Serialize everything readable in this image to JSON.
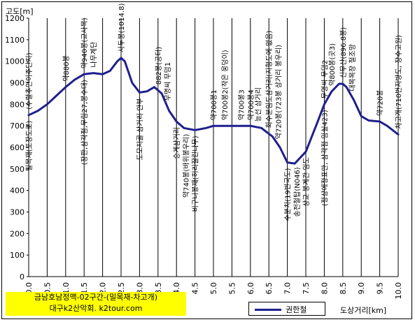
{
  "chart_data": {
    "type": "line",
    "ylabel": "고도[m]",
    "xlabel": "도상거리[km]",
    "ylim": [
      0,
      1200
    ],
    "xlim": [
      0,
      10
    ],
    "y_ticks": [
      "0",
      "100",
      "200",
      "300",
      "400",
      "500",
      "600",
      "700",
      "800",
      "900",
      "1000",
      "1100",
      "1200"
    ],
    "x_ticks": [
      "0.0",
      "0.5",
      "1.0",
      "1.5",
      "2.0",
      "2.5",
      "3.0",
      "3.5",
      "4.0",
      "4.5",
      "5.0",
      "5.5",
      "6.0",
      "6.5",
      "7.0",
      "7.5",
      "8.0",
      "8.5",
      "9.0",
      "9.5",
      "10.0"
    ],
    "grid": "vertical",
    "series": [
      {
        "name": "권한철",
        "color": "#1f1f8f",
        "x": [
          0.0,
          0.25,
          0.5,
          0.75,
          1.0,
          1.25,
          1.5,
          1.75,
          2.0,
          2.2,
          2.4,
          2.5,
          2.6,
          2.8,
          3.0,
          3.2,
          3.4,
          3.6,
          3.8,
          4.0,
          4.2,
          4.5,
          4.8,
          5.0,
          5.3,
          5.6,
          6.0,
          6.3,
          6.6,
          6.8,
          7.0,
          7.2,
          7.5,
          7.8,
          8.0,
          8.2,
          8.4,
          8.5,
          8.6,
          8.8,
          9.0,
          9.2,
          9.5,
          9.7,
          10.0
        ],
        "y": [
          750,
          770,
          800,
          840,
          880,
          915,
          940,
          945,
          940,
          955,
          1000,
          1015,
          1000,
          900,
          855,
          860,
          880,
          850,
          770,
          720,
          690,
          680,
          690,
          700,
          700,
          700,
          700,
          690,
          650,
          600,
          530,
          525,
          580,
          710,
          800,
          860,
          895,
          895,
          880,
          820,
          745,
          725,
          720,
          700,
          660
        ]
      }
    ],
    "annotations": [
      {
        "x": 0.0,
        "text": "밀목재(포장도로)",
        "pos": "low"
      },
      {
        "x": 0.0,
        "text": "(수렬추민이주단지)",
        "pos": "high"
      },
      {
        "x": 1.0,
        "text": "약880봉",
        "pos": "high"
      },
      {
        "x": 1.5,
        "text": "약940봉(교사목)",
        "pos": "high"
      },
      {
        "x": 1.75,
        "text": "나무계단",
        "pos": "high"
      },
      {
        "x": 1.5,
        "text": "(장판,삼각점,무림27,봉수대)",
        "pos": "low"
      },
      {
        "x": 2.5,
        "text": "사두봉(1014.8)",
        "pos": "high"
      },
      {
        "x": 3.0,
        "text": "도모지골 삼거리 안부",
        "pos": "low"
      },
      {
        "x": 3.5,
        "text": "882봉(공터)",
        "pos": "high"
      },
      {
        "x": 3.75,
        "text": "무명씨 무덤1",
        "pos": "high"
      },
      {
        "x": 4.0,
        "text": "승계삼거리",
        "pos": "low"
      },
      {
        "x": 4.25,
        "text": "약740봉(바위봉우리)",
        "pos": "low"
      },
      {
        "x": 4.5,
        "text": "비구니봉재(허리잘린나무)",
        "pos": "low"
      },
      {
        "x": 5.0,
        "text": "약700봉1",
        "pos": "high"
      },
      {
        "x": 5.3,
        "text": "약700봉2(작은 웅덩이)",
        "pos": "high"
      },
      {
        "x": 5.75,
        "text": "약700봉3",
        "pos": "high"
      },
      {
        "x": 6.0,
        "text": "약700봉4",
        "pos": "high"
      },
      {
        "x": 6.2,
        "text": "능선 삼거리",
        "pos": "high"
      },
      {
        "x": 6.5,
        "text": "회수분임도삼거리(지형도에 없음)",
        "pos": "high"
      },
      {
        "x": 6.75,
        "text": "약720봉(723봉 삼거리 봉우리)",
        "pos": "high"
      },
      {
        "x": 7.0,
        "text": "수분치(19번국도)",
        "pos": "low"
      },
      {
        "x": 7.25,
        "text": "송전철탑(N046)",
        "pos": "low"
      },
      {
        "x": 7.5,
        "text": "상교 봉계간 임도",
        "pos": "low"
      },
      {
        "x": 8.0,
        "text": "무명씨 무덤2",
        "pos": "high"
      },
      {
        "x": 8.0,
        "text": "(정상에정표만, 삼각점 임실423)",
        "pos": "low"
      },
      {
        "x": 8.2,
        "text": "약800봉(곳3)",
        "pos": "high"
      },
      {
        "x": 8.5,
        "text": "신무산(896.8봉)",
        "pos": "high"
      },
      {
        "x": 8.75,
        "text": "대목목장 철조망",
        "pos": "high"
      },
      {
        "x": 9.5,
        "text": "약720봉",
        "pos": "high"
      },
      {
        "x": 10.0,
        "text": "차고개(710번지방도, 장수고원)",
        "pos": "high"
      }
    ]
  },
  "title_box": {
    "line1": "금남호남정맥-02구간-(밀목재-차고개)",
    "line2": "대구k2산악회. k2tour.com"
  }
}
